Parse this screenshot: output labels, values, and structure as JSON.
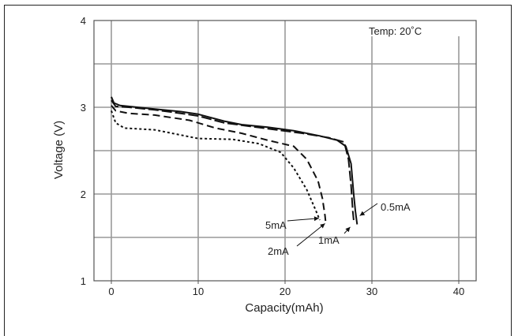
{
  "chart_data": {
    "type": "line",
    "title": "",
    "annotation": "Temp: 20˚C",
    "xlabel": "Capacity(mAh)",
    "ylabel": "Voltage (V)",
    "xlim": [
      -2,
      42
    ],
    "ylim": [
      1,
      4
    ],
    "x_ticks": [
      0,
      10,
      20,
      30,
      40
    ],
    "y_ticks": [
      1,
      2,
      3,
      4
    ],
    "grid": true,
    "series": [
      {
        "name": "0.5mA",
        "dash": "solid",
        "points": [
          [
            0,
            3.12
          ],
          [
            0.3,
            3.05
          ],
          [
            1,
            3.02
          ],
          [
            2,
            3.01
          ],
          [
            5,
            2.98
          ],
          [
            8,
            2.95
          ],
          [
            10,
            2.92
          ],
          [
            13,
            2.84
          ],
          [
            15,
            2.8
          ],
          [
            18,
            2.77
          ],
          [
            21,
            2.73
          ],
          [
            24,
            2.67
          ],
          [
            26,
            2.62
          ],
          [
            27,
            2.55
          ],
          [
            27.6,
            2.35
          ],
          [
            27.9,
            2.0
          ],
          [
            28.1,
            1.8
          ],
          [
            28.3,
            1.65
          ]
        ]
      },
      {
        "name": "1mA",
        "dash": "long-dash",
        "points": [
          [
            0,
            3.08
          ],
          [
            0.5,
            3.01
          ],
          [
            2,
            3.0
          ],
          [
            5,
            2.97
          ],
          [
            8,
            2.93
          ],
          [
            10,
            2.9
          ],
          [
            13,
            2.82
          ],
          [
            16,
            2.78
          ],
          [
            19,
            2.74
          ],
          [
            22,
            2.7
          ],
          [
            25,
            2.65
          ],
          [
            26.8,
            2.6
          ],
          [
            27.3,
            2.4
          ],
          [
            27.6,
            2.1
          ],
          [
            27.8,
            1.8
          ],
          [
            27.9,
            1.7
          ]
        ]
      },
      {
        "name": "2mA",
        "dash": "dash",
        "points": [
          [
            0,
            3.02
          ],
          [
            0.5,
            2.96
          ],
          [
            2,
            2.93
          ],
          [
            5,
            2.91
          ],
          [
            9,
            2.85
          ],
          [
            12,
            2.76
          ],
          [
            15,
            2.7
          ],
          [
            18,
            2.62
          ],
          [
            21,
            2.55
          ],
          [
            22.5,
            2.4
          ],
          [
            23.8,
            2.15
          ],
          [
            24.3,
            1.95
          ],
          [
            24.6,
            1.75
          ],
          [
            24.7,
            1.65
          ]
        ]
      },
      {
        "name": "5mA",
        "dash": "dot",
        "points": [
          [
            0,
            2.96
          ],
          [
            0.5,
            2.82
          ],
          [
            1.5,
            2.76
          ],
          [
            5,
            2.74
          ],
          [
            8,
            2.68
          ],
          [
            10,
            2.64
          ],
          [
            14,
            2.63
          ],
          [
            17,
            2.58
          ],
          [
            19.5,
            2.48
          ],
          [
            21,
            2.3
          ],
          [
            22.5,
            2.05
          ],
          [
            23.5,
            1.82
          ],
          [
            24,
            1.7
          ]
        ]
      }
    ],
    "labels": [
      {
        "text": "5mA"
      },
      {
        "text": "2mA"
      },
      {
        "text": "1mA"
      },
      {
        "text": "0.5mA"
      }
    ]
  }
}
